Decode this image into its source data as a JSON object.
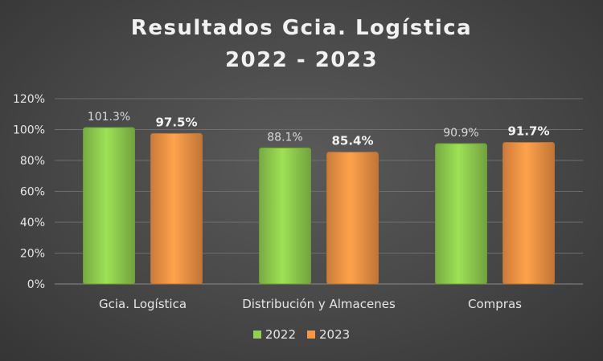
{
  "chart_data": {
    "type": "bar",
    "title": "Resultados Gcia. Logística",
    "subtitle": "2022 - 2023",
    "categories": [
      "Gcia. Logística",
      "Distribución y Almacenes",
      "Compras"
    ],
    "series": [
      {
        "name": "2022",
        "values": [
          101.3,
          88.1,
          90.9
        ],
        "labels": [
          "101.3%",
          "88.1%",
          "90.9%"
        ],
        "color": "#92d050",
        "label_bold": false
      },
      {
        "name": "2023",
        "values": [
          97.5,
          85.4,
          91.7
        ],
        "labels": [
          "97.5%",
          "85.4%",
          "91.7%"
        ],
        "color": "#f79646",
        "label_bold": true
      }
    ],
    "ylim": [
      0,
      120
    ],
    "yticks": [
      "0%",
      "20%",
      "40%",
      "60%",
      "80%",
      "100%",
      "120%"
    ],
    "grid": true,
    "legend": "bottom",
    "colors": {
      "background": "#474747",
      "text": "#e6e6e6",
      "grid": "#6e6e6e"
    }
  }
}
